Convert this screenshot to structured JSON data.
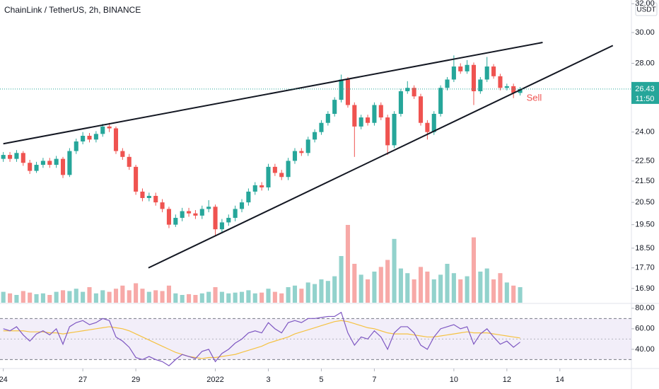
{
  "chart_data": {
    "type": "candlestick",
    "title": "ChainLink / TetherUS, 2h, BINANCE",
    "currency": "USDT",
    "log_scale": true,
    "up_color": "#26a69a",
    "down_color": "#ef5350",
    "xlim": [
      -0.5,
      94.8
    ],
    "xticks": [
      {
        "value": 0,
        "label": "24"
      },
      {
        "value": 12,
        "label": "27"
      },
      {
        "value": 20,
        "label": "29"
      },
      {
        "value": 32,
        "label": "2022"
      },
      {
        "value": 40,
        "label": "3"
      },
      {
        "value": 48,
        "label": "5"
      },
      {
        "value": 56,
        "label": "7"
      },
      {
        "value": 68,
        "label": "10"
      },
      {
        "value": 76,
        "label": "12"
      },
      {
        "value": 84,
        "label": "14"
      }
    ],
    "ylim": [
      16.37,
      32.27
    ],
    "yticks": [
      {
        "value": 32,
        "label": "32.00"
      },
      {
        "value": 30,
        "label": "30.00"
      },
      {
        "value": 28,
        "label": "28.00"
      },
      {
        "value": 24,
        "label": "24.00"
      },
      {
        "value": 22.5,
        "label": "22.50"
      },
      {
        "value": 21.5,
        "label": "21.50"
      },
      {
        "value": 20.5,
        "label": "20.50"
      },
      {
        "value": 19.5,
        "label": "19.50"
      },
      {
        "value": 18.5,
        "label": "18.50"
      },
      {
        "value": 17.7,
        "label": "17.70"
      },
      {
        "value": 16.9,
        "label": "16.90"
      }
    ],
    "open": [
      22.6,
      22.8,
      22.6,
      22.9,
      22.4,
      22.0,
      22.3,
      22.5,
      22.3,
      22.6,
      21.8,
      23.0,
      23.5,
      23.8,
      23.6,
      23.9,
      24.3,
      24.2,
      23.0,
      22.7,
      22.2,
      21.0,
      20.7,
      20.8,
      20.5,
      20.2,
      19.5,
      19.8,
      20.1,
      20.0,
      19.9,
      20.2,
      20.3,
      19.3,
      19.6,
      19.8,
      20.2,
      20.5,
      21.0,
      21.3,
      21.2,
      22.2,
      21.9,
      21.7,
      22.5,
      23.0,
      22.9,
      23.6,
      24.0,
      24.5,
      25.0,
      25.8,
      27.0,
      25.5,
      24.3,
      24.8,
      24.5,
      25.5,
      24.8,
      23.3,
      25.0,
      26.3,
      26.5,
      26.0,
      24.5,
      24.0,
      25.0,
      26.5,
      27.0,
      27.8,
      27.5,
      27.9,
      26.3,
      27.0,
      27.8,
      27.2,
      26.5,
      26.6,
      26.2
    ],
    "high": [
      22.95,
      22.95,
      23.05,
      23.0,
      22.55,
      22.45,
      22.65,
      22.65,
      22.75,
      22.7,
      23.15,
      23.65,
      24.0,
      23.95,
      24.05,
      24.45,
      24.5,
      24.3,
      23.15,
      22.85,
      22.3,
      21.15,
      20.95,
      20.95,
      20.65,
      20.3,
      19.95,
      20.25,
      20.25,
      20.15,
      20.35,
      20.6,
      20.4,
      19.75,
      19.95,
      20.35,
      20.65,
      21.15,
      21.45,
      21.45,
      22.35,
      22.35,
      22.05,
      22.65,
      23.15,
      23.15,
      23.75,
      24.15,
      24.65,
      25.15,
      25.95,
      27.3,
      27.15,
      25.65,
      24.95,
      24.95,
      25.65,
      25.65,
      24.95,
      25.15,
      26.45,
      26.9,
      26.65,
      26.15,
      24.65,
      25.15,
      26.65,
      27.15,
      28.5,
      28.0,
      28.2,
      28.05,
      27.15,
      28.4,
      27.95,
      27.35,
      26.75,
      26.75,
      26.55
    ],
    "low": [
      22.45,
      22.45,
      22.45,
      22.25,
      21.85,
      21.9,
      22.15,
      22.15,
      22.15,
      21.65,
      21.7,
      22.85,
      23.35,
      23.45,
      23.45,
      23.75,
      24.0,
      22.85,
      22.55,
      22.05,
      20.85,
      20.55,
      20.55,
      20.35,
      20.05,
      19.35,
      19.4,
      19.65,
      19.85,
      19.75,
      19.75,
      20.05,
      19.0,
      19.15,
      19.45,
      19.65,
      20.05,
      20.35,
      20.85,
      21.05,
      21.05,
      21.75,
      21.55,
      21.55,
      22.35,
      22.75,
      22.75,
      23.45,
      23.85,
      24.35,
      24.85,
      25.65,
      25.35,
      22.7,
      24.15,
      24.35,
      24.35,
      24.65,
      22.8,
      23.15,
      24.85,
      26.15,
      25.85,
      24.35,
      23.6,
      23.85,
      24.85,
      26.35,
      26.85,
      27.35,
      27.35,
      25.5,
      26.15,
      26.85,
      27.05,
      26.35,
      26.35,
      25.9,
      26.05
    ],
    "close": [
      22.8,
      22.6,
      22.9,
      22.4,
      22.0,
      22.3,
      22.5,
      22.3,
      22.6,
      21.8,
      23.0,
      23.5,
      23.8,
      23.6,
      23.9,
      24.3,
      24.2,
      23.0,
      22.7,
      22.2,
      21.0,
      20.7,
      20.8,
      20.5,
      20.2,
      19.5,
      19.8,
      20.1,
      20.0,
      19.9,
      20.2,
      20.3,
      19.3,
      19.6,
      19.8,
      20.2,
      20.5,
      21.0,
      21.3,
      21.2,
      22.2,
      21.9,
      21.7,
      22.5,
      23.0,
      22.9,
      23.6,
      24.0,
      24.5,
      25.0,
      25.8,
      27.0,
      25.5,
      24.3,
      24.8,
      24.5,
      25.5,
      24.8,
      23.3,
      25.0,
      26.3,
      26.5,
      26.0,
      24.5,
      24.0,
      25.0,
      26.5,
      27.0,
      27.8,
      27.5,
      27.9,
      26.3,
      27.0,
      27.8,
      27.2,
      26.5,
      26.6,
      26.2,
      26.43
    ],
    "volume": [
      14,
      12,
      10,
      15,
      13,
      11,
      12,
      10,
      14,
      16,
      15,
      18,
      14,
      20,
      12,
      16,
      14,
      18,
      22,
      16,
      25,
      18,
      14,
      16,
      15,
      22,
      12,
      10,
      11,
      10,
      12,
      14,
      20,
      14,
      12,
      13,
      14,
      16,
      12,
      13,
      18,
      14,
      12,
      20,
      22,
      18,
      26,
      24,
      30,
      28,
      34,
      60,
      100,
      50,
      36,
      30,
      40,
      46,
      55,
      82,
      44,
      38,
      30,
      46,
      40,
      30,
      36,
      50,
      38,
      30,
      34,
      84,
      40,
      44,
      30,
      38,
      26,
      22,
      20
    ],
    "volume_lim": [
      0,
      100
    ],
    "last_price": 26.43,
    "countdown": "11:50",
    "trendlines": [
      {
        "x": [
          0,
          81.4
        ],
        "y": [
          23.38,
          29.34
        ]
      },
      {
        "x": [
          21.9,
          92
        ],
        "y": [
          17.7,
          29.14
        ]
      }
    ],
    "annotation": "Sell",
    "rsi": {
      "values": [
        60,
        58,
        62,
        54,
        48,
        55,
        58,
        54,
        60,
        45,
        62,
        66,
        68,
        64,
        66,
        70,
        68,
        52,
        48,
        42,
        32,
        30,
        33,
        30,
        28,
        24,
        30,
        35,
        33,
        31,
        38,
        40,
        28,
        36,
        40,
        46,
        50,
        56,
        58,
        56,
        66,
        60,
        56,
        66,
        68,
        66,
        70,
        70,
        71,
        72,
        72,
        76,
        56,
        44,
        52,
        50,
        58,
        52,
        40,
        56,
        62,
        62,
        56,
        44,
        40,
        52,
        60,
        62,
        64,
        60,
        62,
        45,
        55,
        60,
        52,
        45,
        48,
        42,
        47
      ],
      "ma": [
        58,
        58,
        58,
        58,
        57,
        57,
        57,
        56,
        56,
        55,
        56,
        57,
        58,
        59,
        60,
        61,
        62,
        61,
        60,
        58,
        55,
        52,
        49,
        46,
        43,
        40,
        37,
        35,
        33,
        32,
        31,
        32,
        32,
        33,
        34,
        35,
        37,
        39,
        41,
        43,
        46,
        48,
        50,
        52,
        55,
        57,
        59,
        61,
        63,
        65,
        67,
        68,
        67,
        65,
        63,
        61,
        60,
        58,
        56,
        55,
        55,
        55,
        54,
        53,
        52,
        52,
        53,
        54,
        55,
        56,
        57,
        56,
        56,
        56,
        55,
        54,
        53,
        52,
        51
      ],
      "color": "#7e57c2",
      "ma_color": "#f5c242",
      "ylim": [
        22,
        84
      ],
      "yticks": [
        {
          "value": 80,
          "label": "80.00"
        },
        {
          "value": 60,
          "label": "60.00"
        },
        {
          "value": 40,
          "label": "40.00"
        }
      ],
      "band": [
        30,
        70
      ],
      "mid": 50
    }
  }
}
